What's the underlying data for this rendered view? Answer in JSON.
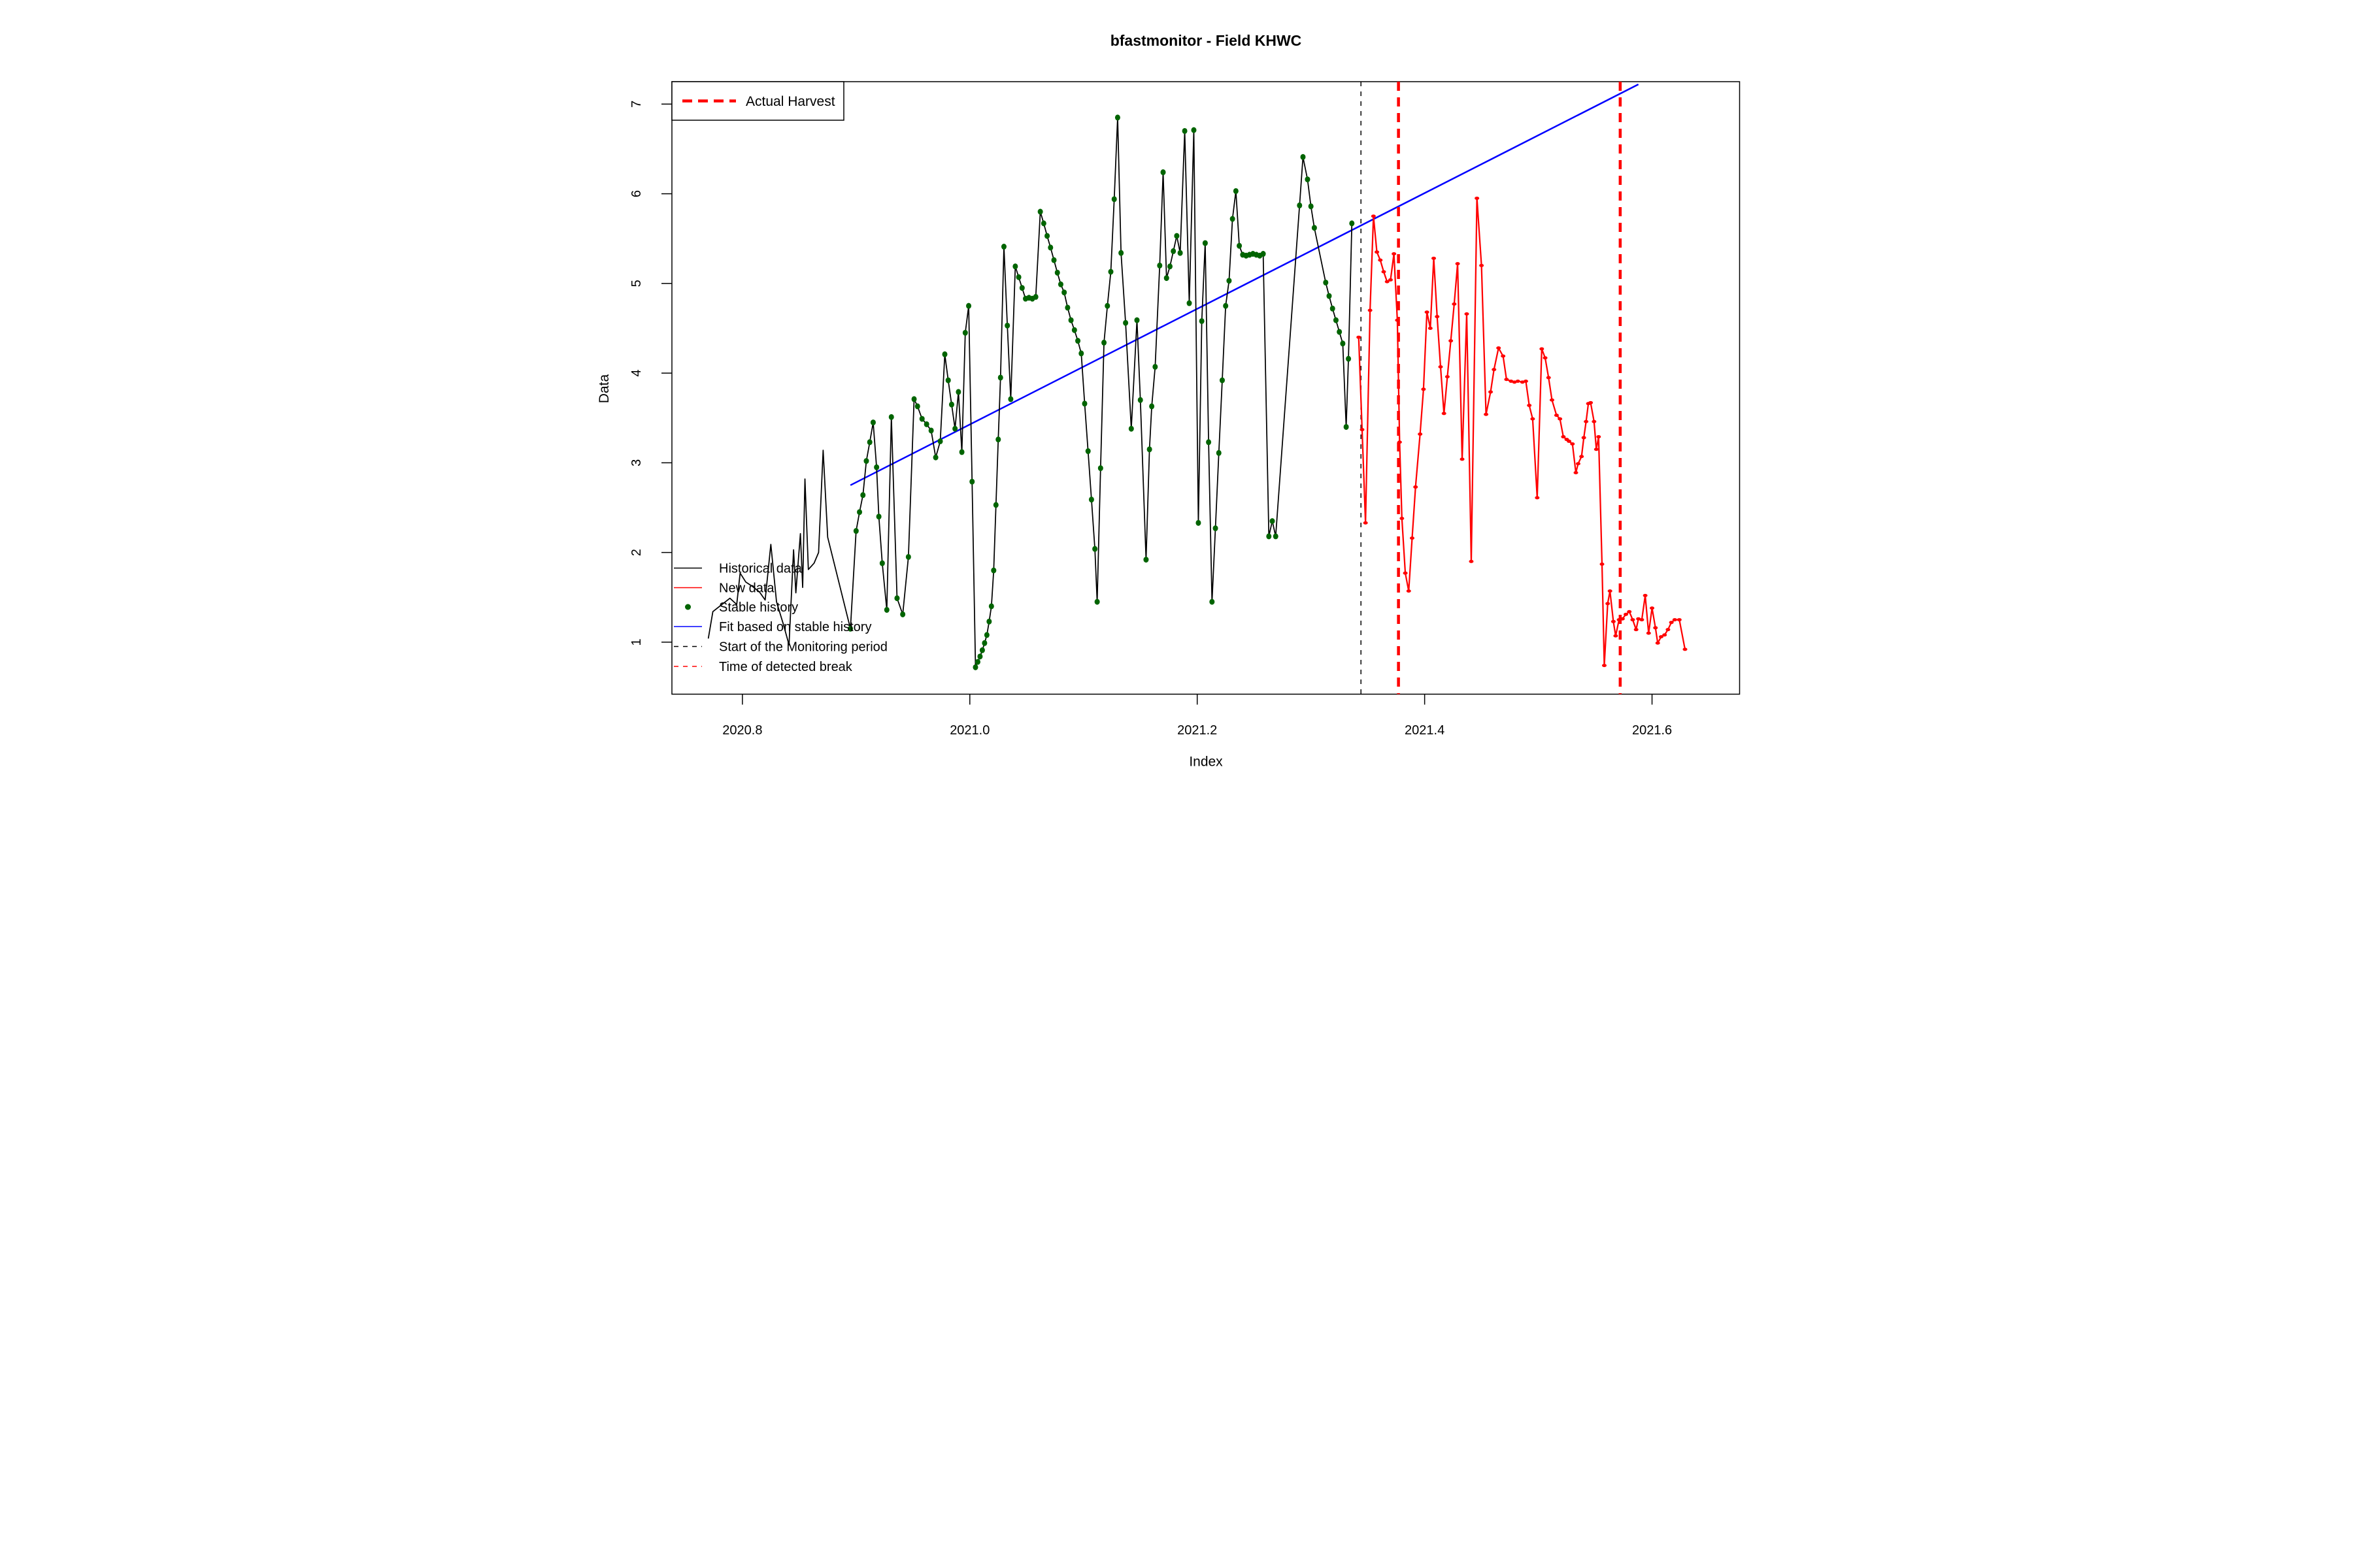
{
  "chart_data": {
    "type": "line",
    "title": "bfastmonitor - Field KHWC",
    "xlabel": "Index",
    "ylabel": "Data",
    "xlim": [
      2020.738,
      2021.677
    ],
    "ylim": [
      0.42,
      7.25
    ],
    "grid": false,
    "xtick_values": [
      2020.8,
      2021.0,
      2021.2,
      2021.4,
      2021.6
    ],
    "xtick_labels": [
      "2020.8",
      "2021.0",
      "2021.2",
      "2021.4",
      "2021.6"
    ],
    "ytick_values": [
      1,
      2,
      3,
      4,
      5,
      6,
      7
    ],
    "ytick_labels": [
      "1",
      "2",
      "3",
      "4",
      "5",
      "6",
      "7"
    ],
    "colors": {
      "historical": "#000000",
      "new_data": "#FF0000",
      "stable_history": "#006400",
      "fit": "#0000FF",
      "monitoring_start": "#000000",
      "detected_break": "#FF0000"
    },
    "legend_top": {
      "label": "Actual Harvest",
      "style": {
        "type": "line",
        "color": "#FF0000",
        "dash": "30,18",
        "width": 9
      },
      "position": "top-left",
      "boxed": true
    },
    "legend_bottom": {
      "position": "bottom-left",
      "boxed": false,
      "items": [
        {
          "label": "Historical data",
          "style": {
            "type": "line",
            "color": "#000000",
            "dash": "",
            "width": 3
          }
        },
        {
          "label": "New data",
          "style": {
            "type": "line",
            "color": "#FF0000",
            "dash": "",
            "width": 3
          }
        },
        {
          "label": "Stable history",
          "style": {
            "type": "dot",
            "color": "#006400"
          }
        },
        {
          "label": "Fit based on stable history",
          "style": {
            "type": "line",
            "color": "#0000FF",
            "dash": "",
            "width": 3
          }
        },
        {
          "label": "Start of the Monitoring period",
          "style": {
            "type": "line",
            "color": "#000000",
            "dash": "14,14",
            "width": 3
          }
        },
        {
          "label": "Time of detected break",
          "style": {
            "type": "line",
            "color": "#FF0000",
            "dash": "14,14",
            "width": 3
          }
        }
      ]
    },
    "vlines": [
      {
        "name": "monitoring-start",
        "x": 2021.344,
        "color": "#000000",
        "width": 3,
        "dash": "14,16"
      },
      {
        "name": "detected-break",
        "x": 2021.377,
        "color": "#FF0000",
        "width": 9,
        "dash": "28,20"
      },
      {
        "name": "actual-harvest",
        "x": 2021.572,
        "color": "#FF0000",
        "width": 9,
        "dash": "28,20"
      }
    ],
    "fit_line": {
      "x": [
        2020.895,
        2021.588
      ],
      "y": [
        2.75,
        7.22
      ]
    },
    "stable_from": 2020.894,
    "series": [
      {
        "name": "Historical data",
        "color": "#000000",
        "marker": "stable-green-dots",
        "points": [
          [
            2020.77,
            1.04
          ],
          [
            2020.774,
            1.34
          ],
          [
            2020.779,
            1.39
          ],
          [
            2020.789,
            1.49
          ],
          [
            2020.795,
            1.42
          ],
          [
            2020.798,
            1.77
          ],
          [
            2020.803,
            1.67
          ],
          [
            2020.809,
            1.62
          ],
          [
            2020.815,
            1.56
          ],
          [
            2020.82,
            1.47
          ],
          [
            2020.825,
            2.09
          ],
          [
            2020.83,
            1.45
          ],
          [
            2020.836,
            1.2
          ],
          [
            2020.841,
            0.97
          ],
          [
            2020.845,
            2.03
          ],
          [
            2020.847,
            1.55
          ],
          [
            2020.851,
            2.21
          ],
          [
            2020.853,
            1.61
          ],
          [
            2020.855,
            2.82
          ],
          [
            2020.858,
            1.81
          ],
          [
            2020.863,
            1.88
          ],
          [
            2020.867,
            2.0
          ],
          [
            2020.871,
            3.14
          ],
          [
            2020.875,
            2.17
          ],
          [
            2020.895,
            1.15
          ],
          [
            2020.9,
            2.24
          ],
          [
            2020.903,
            2.45
          ],
          [
            2020.906,
            2.64
          ],
          [
            2020.909,
            3.02
          ],
          [
            2020.912,
            3.23
          ],
          [
            2020.915,
            3.45
          ],
          [
            2020.918,
            2.95
          ],
          [
            2020.92,
            2.4
          ],
          [
            2020.923,
            1.88
          ],
          [
            2020.927,
            1.36
          ],
          [
            2020.931,
            3.51
          ],
          [
            2020.936,
            1.49
          ],
          [
            2020.941,
            1.31
          ],
          [
            2020.946,
            1.95
          ],
          [
            2020.951,
            3.71
          ],
          [
            2020.954,
            3.63
          ],
          [
            2020.958,
            3.49
          ],
          [
            2020.962,
            3.43
          ],
          [
            2020.966,
            3.36
          ],
          [
            2020.97,
            3.06
          ],
          [
            2020.974,
            3.24
          ],
          [
            2020.978,
            4.21
          ],
          [
            2020.981,
            3.92
          ],
          [
            2020.984,
            3.65
          ],
          [
            2020.987,
            3.38
          ],
          [
            2020.99,
            3.79
          ],
          [
            2020.993,
            3.12
          ],
          [
            2020.996,
            4.45
          ],
          [
            2020.999,
            4.75
          ],
          [
            2021.002,
            2.79
          ],
          [
            2021.005,
            0.72
          ],
          [
            2021.007,
            0.78
          ],
          [
            2021.009,
            0.84
          ],
          [
            2021.011,
            0.91
          ],
          [
            2021.013,
            0.99
          ],
          [
            2021.015,
            1.08
          ],
          [
            2021.017,
            1.23
          ],
          [
            2021.019,
            1.4
          ],
          [
            2021.021,
            1.8
          ],
          [
            2021.023,
            2.53
          ],
          [
            2021.025,
            3.26
          ],
          [
            2021.027,
            3.95
          ],
          [
            2021.03,
            5.41
          ],
          [
            2021.033,
            4.53
          ],
          [
            2021.036,
            3.71
          ],
          [
            2021.04,
            5.19
          ],
          [
            2021.043,
            5.07
          ],
          [
            2021.046,
            4.95
          ],
          [
            2021.049,
            4.83
          ],
          [
            2021.052,
            4.84
          ],
          [
            2021.055,
            4.83
          ],
          [
            2021.058,
            4.85
          ],
          [
            2021.062,
            5.8
          ],
          [
            2021.065,
            5.67
          ],
          [
            2021.068,
            5.53
          ],
          [
            2021.071,
            5.4
          ],
          [
            2021.074,
            5.26
          ],
          [
            2021.077,
            5.12
          ],
          [
            2021.08,
            4.99
          ],
          [
            2021.083,
            4.9
          ],
          [
            2021.086,
            4.73
          ],
          [
            2021.089,
            4.59
          ],
          [
            2021.092,
            4.48
          ],
          [
            2021.095,
            4.36
          ],
          [
            2021.098,
            4.22
          ],
          [
            2021.101,
            3.66
          ],
          [
            2021.104,
            3.13
          ],
          [
            2021.107,
            2.59
          ],
          [
            2021.11,
            2.04
          ],
          [
            2021.112,
            1.45
          ],
          [
            2021.115,
            2.94
          ],
          [
            2021.118,
            4.34
          ],
          [
            2021.121,
            4.75
          ],
          [
            2021.124,
            5.13
          ],
          [
            2021.127,
            5.94
          ],
          [
            2021.13,
            6.85
          ],
          [
            2021.133,
            5.34
          ],
          [
            2021.137,
            4.56
          ],
          [
            2021.142,
            3.38
          ],
          [
            2021.147,
            4.59
          ],
          [
            2021.15,
            3.7
          ],
          [
            2021.155,
            1.92
          ],
          [
            2021.158,
            3.15
          ],
          [
            2021.16,
            3.63
          ],
          [
            2021.163,
            4.07
          ],
          [
            2021.167,
            5.2
          ],
          [
            2021.17,
            6.24
          ],
          [
            2021.173,
            5.06
          ],
          [
            2021.176,
            5.19
          ],
          [
            2021.179,
            5.36
          ],
          [
            2021.182,
            5.53
          ],
          [
            2021.185,
            5.34
          ],
          [
            2021.189,
            6.7
          ],
          [
            2021.193,
            4.78
          ],
          [
            2021.197,
            6.71
          ],
          [
            2021.201,
            2.33
          ],
          [
            2021.204,
            4.58
          ],
          [
            2021.207,
            5.45
          ],
          [
            2021.21,
            3.23
          ],
          [
            2021.213,
            1.45
          ],
          [
            2021.216,
            2.27
          ],
          [
            2021.219,
            3.11
          ],
          [
            2021.222,
            3.92
          ],
          [
            2021.225,
            4.75
          ],
          [
            2021.228,
            5.03
          ],
          [
            2021.231,
            5.72
          ],
          [
            2021.234,
            6.03
          ],
          [
            2021.237,
            5.42
          ],
          [
            2021.24,
            5.32
          ],
          [
            2021.243,
            5.31
          ],
          [
            2021.246,
            5.32
          ],
          [
            2021.249,
            5.33
          ],
          [
            2021.252,
            5.32
          ],
          [
            2021.255,
            5.31
          ],
          [
            2021.258,
            5.33
          ],
          [
            2021.263,
            2.18
          ],
          [
            2021.266,
            2.35
          ],
          [
            2021.269,
            2.18
          ],
          [
            2021.29,
            5.87
          ],
          [
            2021.293,
            6.41
          ],
          [
            2021.297,
            6.16
          ],
          [
            2021.3,
            5.86
          ],
          [
            2021.303,
            5.62
          ],
          [
            2021.313,
            5.01
          ],
          [
            2021.316,
            4.86
          ],
          [
            2021.319,
            4.72
          ],
          [
            2021.322,
            4.59
          ],
          [
            2021.325,
            4.46
          ],
          [
            2021.328,
            4.33
          ],
          [
            2021.331,
            3.4
          ],
          [
            2021.333,
            4.16
          ],
          [
            2021.336,
            5.67
          ]
        ]
      },
      {
        "name": "New data",
        "color": "#FF0000",
        "marker": "red-dots",
        "points": [
          [
            2021.342,
            4.4
          ],
          [
            2021.345,
            3.37
          ],
          [
            2021.348,
            2.33
          ],
          [
            2021.352,
            4.7
          ],
          [
            2021.355,
            5.75
          ],
          [
            2021.358,
            5.35
          ],
          [
            2021.361,
            5.26
          ],
          [
            2021.364,
            5.13
          ],
          [
            2021.367,
            5.02
          ],
          [
            2021.37,
            5.04
          ],
          [
            2021.373,
            5.33
          ],
          [
            2021.376,
            4.59
          ],
          [
            2021.378,
            3.23
          ],
          [
            2021.38,
            2.38
          ],
          [
            2021.383,
            1.77
          ],
          [
            2021.386,
            1.57
          ],
          [
            2021.389,
            2.16
          ],
          [
            2021.392,
            2.73
          ],
          [
            2021.396,
            3.32
          ],
          [
            2021.399,
            3.82
          ],
          [
            2021.402,
            4.68
          ],
          [
            2021.405,
            4.5
          ],
          [
            2021.408,
            5.28
          ],
          [
            2021.411,
            4.63
          ],
          [
            2021.414,
            4.07
          ],
          [
            2021.417,
            3.55
          ],
          [
            2021.42,
            3.96
          ],
          [
            2021.423,
            4.36
          ],
          [
            2021.426,
            4.77
          ],
          [
            2021.429,
            5.22
          ],
          [
            2021.433,
            3.04
          ],
          [
            2021.437,
            4.66
          ],
          [
            2021.441,
            1.9
          ],
          [
            2021.446,
            5.95
          ],
          [
            2021.45,
            5.2
          ],
          [
            2021.454,
            3.54
          ],
          [
            2021.458,
            3.79
          ],
          [
            2021.461,
            4.04
          ],
          [
            2021.465,
            4.28
          ],
          [
            2021.469,
            4.19
          ],
          [
            2021.472,
            3.93
          ],
          [
            2021.476,
            3.91
          ],
          [
            2021.479,
            3.9
          ],
          [
            2021.482,
            3.91
          ],
          [
            2021.486,
            3.9
          ],
          [
            2021.489,
            3.91
          ],
          [
            2021.492,
            3.64
          ],
          [
            2021.495,
            3.49
          ],
          [
            2021.499,
            2.61
          ],
          [
            2021.503,
            4.27
          ],
          [
            2021.506,
            4.17
          ],
          [
            2021.509,
            3.95
          ],
          [
            2021.512,
            3.7
          ],
          [
            2021.516,
            3.53
          ],
          [
            2021.519,
            3.49
          ],
          [
            2021.522,
            3.29
          ],
          [
            2021.525,
            3.26
          ],
          [
            2021.527,
            3.24
          ],
          [
            2021.53,
            3.21
          ],
          [
            2021.533,
            2.89
          ],
          [
            2021.535,
            2.99
          ],
          [
            2021.538,
            3.07
          ],
          [
            2021.54,
            3.28
          ],
          [
            2021.542,
            3.46
          ],
          [
            2021.544,
            3.66
          ],
          [
            2021.546,
            3.67
          ],
          [
            2021.549,
            3.46
          ],
          [
            2021.551,
            3.15
          ],
          [
            2021.553,
            3.29
          ],
          [
            2021.556,
            1.87
          ],
          [
            2021.558,
            0.74
          ],
          [
            2021.561,
            1.43
          ],
          [
            2021.563,
            1.57
          ],
          [
            2021.566,
            1.23
          ],
          [
            2021.568,
            1.07
          ],
          [
            2021.571,
            1.25
          ],
          [
            2021.574,
            1.26
          ],
          [
            2021.577,
            1.31
          ],
          [
            2021.58,
            1.34
          ],
          [
            2021.583,
            1.25
          ],
          [
            2021.586,
            1.14
          ],
          [
            2021.588,
            1.26
          ],
          [
            2021.591,
            1.25
          ],
          [
            2021.594,
            1.52
          ],
          [
            2021.597,
            1.1
          ],
          [
            2021.6,
            1.38
          ],
          [
            2021.603,
            1.16
          ],
          [
            2021.605,
            0.99
          ],
          [
            2021.608,
            1.06
          ],
          [
            2021.611,
            1.08
          ],
          [
            2021.614,
            1.14
          ],
          [
            2021.617,
            1.22
          ],
          [
            2021.62,
            1.25
          ],
          [
            2021.624,
            1.25
          ],
          [
            2021.629,
            0.92
          ]
        ]
      }
    ]
  }
}
